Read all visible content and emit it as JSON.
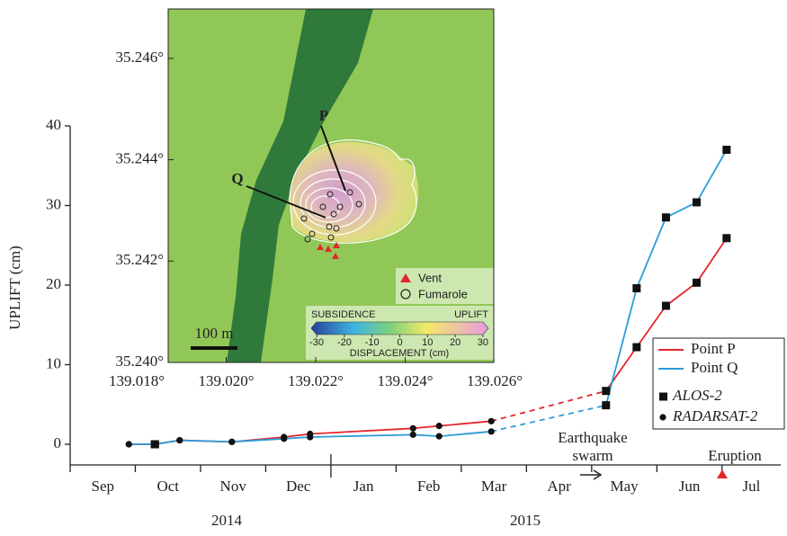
{
  "chart_data": {
    "type": "line",
    "y_label": "UPLIFT (cm)",
    "categories": [
      "Sep",
      "Oct",
      "Nov",
      "Dec",
      "Jan",
      "Feb",
      "Mar",
      "Apr",
      "May",
      "Jun",
      "Jul"
    ],
    "years": [
      "2014",
      "2015"
    ],
    "x": [
      0.9,
      1.3,
      1.68,
      2.48,
      3.28,
      3.68,
      5.26,
      5.66,
      6.46,
      8.22,
      8.69,
      9.14,
      9.61,
      10.07
    ],
    "xlim": [
      0,
      10.9
    ],
    "ylim": [
      -2.6,
      40
    ],
    "yticks": [
      0,
      10,
      20,
      30,
      40
    ],
    "series": [
      {
        "name": "Point P",
        "color": "#e4262c",
        "values": [
          0,
          0,
          0.5,
          0.3,
          0.9,
          1.3,
          2.0,
          2.3,
          2.9,
          6.7,
          12.2,
          17.4,
          20.3,
          25.9
        ]
      },
      {
        "name": "Point Q",
        "color": "#2b9cd8",
        "values": [
          0,
          0,
          0.5,
          0.3,
          0.7,
          0.9,
          1.2,
          1.0,
          1.6,
          4.9,
          19.6,
          28.5,
          30.4,
          37.0
        ]
      }
    ],
    "markers": [
      "circle",
      "square",
      "circle",
      "circle",
      "circle",
      "circle",
      "circle",
      "circle",
      "circle",
      "square",
      "square",
      "square",
      "square",
      "square"
    ],
    "line_style": [
      "solid",
      "solid",
      "solid",
      "solid",
      "solid",
      "solid",
      "solid",
      "solid",
      "dashed",
      "solid",
      "solid",
      "solid",
      "solid"
    ],
    "marker_legend": [
      {
        "name": "ALOS-2",
        "shape": "square"
      },
      {
        "name": "RADARSAT-2",
        "shape": "circle"
      }
    ],
    "annotations": [
      {
        "lines": [
          "Earthquake",
          "swarm"
        ]
      },
      {
        "lines": [
          "Eruption"
        ]
      }
    ]
  },
  "inset": {
    "lat_ticks": [
      {
        "value": 35.24,
        "label": "35.240°"
      },
      {
        "value": 35.242,
        "label": "35.242°"
      },
      {
        "value": 35.244,
        "label": "35.244°"
      },
      {
        "value": 35.246,
        "label": "35.246°"
      }
    ],
    "lon_ticks": [
      {
        "value": 139.018,
        "label": "139.018°"
      },
      {
        "value": 139.02,
        "label": "139.020°"
      },
      {
        "value": 139.022,
        "label": "139.022°"
      },
      {
        "value": 139.024,
        "label": "139.024°"
      },
      {
        "value": 139.026,
        "label": "139.026°"
      }
    ],
    "point_labels": [
      "P",
      "Q"
    ],
    "legend": [
      "Vent",
      "Fumarole"
    ],
    "scale_bar": "100 m",
    "colorbar": {
      "left": "SUBSIDENCE",
      "right": "UPLIFT",
      "ticks": [
        -30,
        -20,
        -10,
        0,
        10,
        20,
        30
      ],
      "label": "DISPLACEMENT (cm)"
    }
  }
}
